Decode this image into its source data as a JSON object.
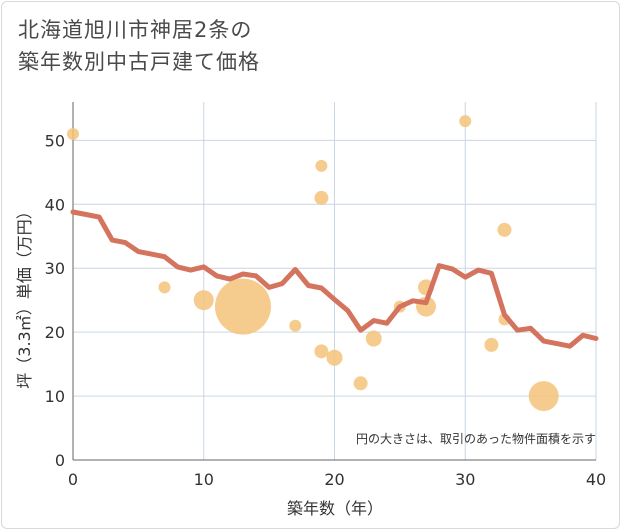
{
  "title_lines": [
    "北海道旭川市神居2条の",
    "築年数別中古戸建て価格"
  ],
  "chart_data": {
    "type": "scatter+line",
    "xlabel": "築年数（年）",
    "ylabel": "坪（3.3㎡）単価（万円）",
    "xlim": [
      0,
      40
    ],
    "ylim": [
      0,
      56
    ],
    "xticks": [
      "0",
      "10",
      "20",
      "30",
      "40"
    ],
    "yticks": [
      "0",
      "10",
      "20",
      "30",
      "40",
      "50"
    ],
    "grid": true,
    "note": "円の大きさは、取引のあった物件面積を示す",
    "line_color": "#d4735e",
    "bubble_color": "#f5c37a",
    "line": {
      "x": [
        0,
        1,
        2,
        3,
        4,
        5,
        6,
        7,
        8,
        9,
        10,
        11,
        12,
        13,
        14,
        15,
        16,
        17,
        18,
        19,
        20,
        21,
        22,
        23,
        24,
        25,
        26,
        27,
        28,
        29,
        30,
        31,
        32,
        33,
        34,
        35,
        36,
        37,
        38,
        39,
        40
      ],
      "y": [
        38.8,
        38.4,
        38,
        34.4,
        34,
        32.6,
        32.2,
        31.8,
        30.2,
        29.7,
        30.2,
        28.8,
        28.3,
        29.1,
        28.8,
        27,
        27.6,
        29.8,
        27.3,
        26.9,
        25.1,
        23.4,
        20.3,
        21.8,
        21.4,
        24,
        24.9,
        24.6,
        30.4,
        29.9,
        28.6,
        29.7,
        29.2,
        22.7,
        20.3,
        20.6,
        18.6,
        18.2,
        17.8,
        19.5,
        19
      ]
    },
    "bubbles": [
      {
        "x": 0,
        "y": 51,
        "size": 6
      },
      {
        "x": 7,
        "y": 27,
        "size": 6
      },
      {
        "x": 10,
        "y": 25,
        "size": 10
      },
      {
        "x": 13,
        "y": 24,
        "size": 28
      },
      {
        "x": 17,
        "y": 21,
        "size": 6
      },
      {
        "x": 19,
        "y": 46,
        "size": 6
      },
      {
        "x": 19,
        "y": 41,
        "size": 7
      },
      {
        "x": 19,
        "y": 17,
        "size": 7
      },
      {
        "x": 20,
        "y": 16,
        "size": 8
      },
      {
        "x": 22,
        "y": 12,
        "size": 7
      },
      {
        "x": 23,
        "y": 19,
        "size": 8
      },
      {
        "x": 25,
        "y": 24,
        "size": 6
      },
      {
        "x": 27,
        "y": 27,
        "size": 8
      },
      {
        "x": 27,
        "y": 24,
        "size": 10
      },
      {
        "x": 30,
        "y": 53,
        "size": 6
      },
      {
        "x": 32,
        "y": 18,
        "size": 7
      },
      {
        "x": 33,
        "y": 36,
        "size": 7
      },
      {
        "x": 33,
        "y": 22,
        "size": 6
      },
      {
        "x": 36,
        "y": 10,
        "size": 15
      }
    ]
  }
}
